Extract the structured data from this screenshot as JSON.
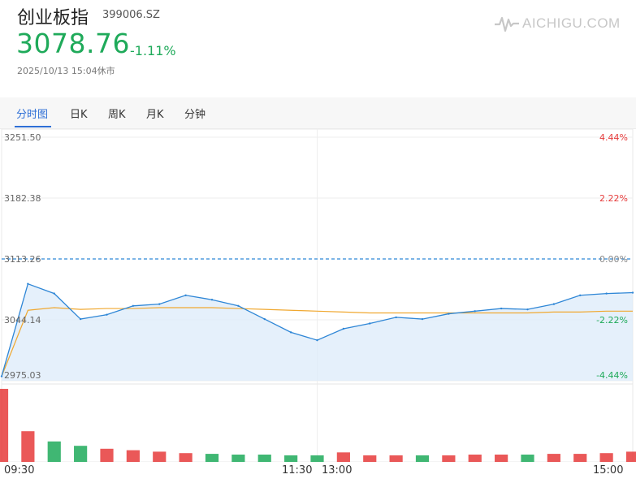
{
  "header": {
    "title": "创业板指",
    "code": "399006.SZ",
    "price": "3078.76",
    "change": "-1.11%",
    "timestamp": "2025/10/13 15:04休市",
    "logo_text": "AICHIGU.COM"
  },
  "tabs": [
    {
      "label": "分时图",
      "active": true
    },
    {
      "label": "日K",
      "active": false
    },
    {
      "label": "周K",
      "active": false
    },
    {
      "label": "月K",
      "active": false
    },
    {
      "label": "分钟",
      "active": false
    }
  ],
  "colors": {
    "up": "#e63b3b",
    "down": "#1faa5a",
    "price_line": "#2e86d6",
    "avg_line": "#f0a830",
    "ref_line": "#2e86d6",
    "area_fill": "#dcebfa"
  },
  "time_labels": [
    "09:30",
    "11:30",
    "13:00",
    "15:00"
  ],
  "chart_data": {
    "type": "line",
    "y_left_ticks": [
      "3251.50",
      "3182.38",
      "3113.26",
      "3044.14",
      "2975.03"
    ],
    "y_right_ticks": [
      "4.44%",
      "2.22%",
      "0.00%",
      "-2.22%",
      "-4.44%"
    ],
    "ylim": [
      2975.03,
      3251.5
    ],
    "reference_price": 3113.26,
    "x": [
      "09:30",
      "09:40",
      "09:50",
      "10:00",
      "10:10",
      "10:20",
      "10:30",
      "10:40",
      "10:50",
      "11:00",
      "11:10",
      "11:20",
      "11:30",
      "13:10",
      "13:20",
      "13:30",
      "13:40",
      "13:50",
      "14:00",
      "14:10",
      "14:20",
      "14:30",
      "14:40",
      "14:50",
      "15:00"
    ],
    "series": [
      {
        "values": [
          2980,
          3085,
          3074,
          3045,
          3050,
          3060,
          3062,
          3072,
          3067,
          3060,
          3045,
          3030,
          3021,
          3034,
          3040,
          3047,
          3045,
          3051,
          3054,
          3057,
          3056,
          3062,
          3072,
          3074,
          3075
        ]
      },
      {
        "values": [
          2980,
          3055,
          3058,
          3056,
          3057,
          3057,
          3058,
          3058,
          3058,
          3057,
          3056,
          3055,
          3054,
          3053,
          3052,
          3052,
          3052,
          3052,
          3052,
          3052,
          3052,
          3053,
          3053,
          3054,
          3054
        ]
      }
    ],
    "volume": [
      100,
      42,
      28,
      22,
      18,
      16,
      14,
      12,
      11,
      10,
      10,
      9,
      9,
      13,
      9,
      9,
      9,
      9,
      10,
      10,
      10,
      11,
      11,
      12,
      14
    ],
    "grid": true
  }
}
